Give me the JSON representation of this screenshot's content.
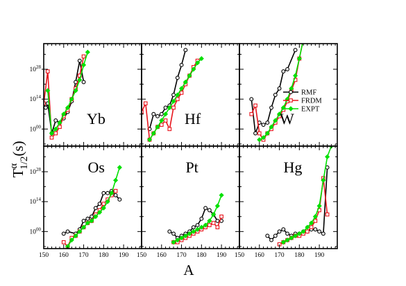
{
  "chart_data": {
    "type": "line",
    "xlabel": "A",
    "ylabel": {
      "main": "T",
      "sup": "α",
      "sub": "1/2",
      "suffix": "(s)"
    },
    "xlim": [
      150,
      199
    ],
    "ylim": [
      -8,
      40
    ],
    "xticks": [
      150,
      160,
      170,
      180,
      190
    ],
    "yticks": [
      {
        "value": 0,
        "base": "10",
        "exp": "00"
      },
      {
        "value": 14,
        "base": "10",
        "exp": "14"
      },
      {
        "value": 28,
        "base": "10",
        "exp": "28"
      }
    ],
    "legend": {
      "placement": "inside W panel, right",
      "entries": [
        {
          "key": "RMF",
          "label": "RMF"
        },
        {
          "key": "FRDM",
          "label": "FRDM"
        },
        {
          "key": "EXPT",
          "label": "EXPT"
        }
      ]
    },
    "series_styles": {
      "RMF": {
        "color": "#000000",
        "marker": "circle"
      },
      "FRDM": {
        "color": "#e8141c",
        "marker": "square"
      },
      "EXPT": {
        "color": "#00e000",
        "marker": "diamond"
      }
    },
    "panels": [
      {
        "element": "Yb",
        "series": {
          "RMF": [
            [
              150,
              12
            ],
            [
              151,
              10
            ],
            [
              152,
              12
            ],
            [
              154,
              -2
            ],
            [
              156,
              4
            ],
            [
              158,
              3
            ],
            [
              160,
              5
            ],
            [
              162,
              8
            ],
            [
              164,
              13
            ],
            [
              166,
              22
            ],
            [
              168,
              32
            ],
            [
              170,
              22
            ]
          ],
          "FRDM": [
            [
              150,
              12
            ],
            [
              152,
              27
            ],
            [
              154,
              -4
            ],
            [
              156,
              -2
            ],
            [
              158,
              1
            ],
            [
              160,
              6
            ],
            [
              162,
              9
            ],
            [
              164,
              14
            ],
            [
              166,
              19
            ],
            [
              168,
              25
            ],
            [
              170,
              34
            ]
          ],
          "EXPT": [
            [
              152,
              18
            ],
            [
              154,
              -2
            ],
            [
              156,
              0
            ],
            [
              158,
              3
            ],
            [
              160,
              7
            ],
            [
              162,
              10
            ],
            [
              164,
              14
            ],
            [
              166,
              18
            ],
            [
              168,
              23
            ],
            [
              170,
              30
            ],
            [
              172,
              36
            ]
          ]
        }
      },
      {
        "element": "Hf",
        "series": {
          "RMF": [
            [
              154,
              0
            ],
            [
              156,
              7
            ],
            [
              158,
              6
            ],
            [
              160,
              7
            ],
            [
              162,
              10
            ],
            [
              164,
              11
            ],
            [
              166,
              16
            ],
            [
              168,
              24
            ],
            [
              170,
              30
            ],
            [
              172,
              37
            ]
          ],
          "FRDM": [
            [
              150,
              8
            ],
            [
              152,
              12
            ],
            [
              154,
              -5
            ],
            [
              156,
              -2
            ],
            [
              158,
              1
            ],
            [
              160,
              2
            ],
            [
              162,
              4
            ],
            [
              164,
              0
            ],
            [
              166,
              10
            ],
            [
              168,
              14
            ],
            [
              170,
              17
            ],
            [
              172,
              21
            ],
            [
              174,
              25
            ],
            [
              176,
              29
            ],
            [
              178,
              32
            ]
          ],
          "EXPT": [
            [
              154,
              -5
            ],
            [
              156,
              -2
            ],
            [
              158,
              1
            ],
            [
              160,
              4
            ],
            [
              162,
              7
            ],
            [
              164,
              10
            ],
            [
              166,
              13
            ],
            [
              168,
              16
            ],
            [
              170,
              19
            ],
            [
              172,
              22
            ],
            [
              174,
              25
            ],
            [
              176,
              28
            ],
            [
              178,
              31
            ],
            [
              180,
              33
            ]
          ]
        }
      },
      {
        "element": "W",
        "series": {
          "RMF": [
            [
              156,
              14
            ],
            [
              158,
              -2
            ],
            [
              160,
              3
            ],
            [
              162,
              2
            ],
            [
              164,
              3
            ],
            [
              166,
              10
            ],
            [
              168,
              16
            ],
            [
              170,
              19
            ],
            [
              172,
              27
            ],
            [
              174,
              28
            ],
            [
              178,
              37
            ]
          ],
          "FRDM": [
            [
              156,
              7
            ],
            [
              158,
              11
            ],
            [
              160,
              -2
            ],
            [
              162,
              -5
            ],
            [
              164,
              -2
            ],
            [
              166,
              0
            ],
            [
              168,
              3
            ],
            [
              170,
              6
            ],
            [
              172,
              9
            ],
            [
              174,
              13
            ],
            [
              176,
              18
            ],
            [
              178,
              23
            ],
            [
              180,
              33
            ],
            [
              182,
              42
            ]
          ],
          "EXPT": [
            [
              160,
              -5
            ],
            [
              162,
              -4
            ],
            [
              164,
              -2
            ],
            [
              166,
              1
            ],
            [
              168,
              4
            ],
            [
              170,
              7
            ],
            [
              172,
              10
            ],
            [
              174,
              14
            ],
            [
              176,
              19
            ],
            [
              178,
              25
            ],
            [
              180,
              33
            ],
            [
              182,
              42
            ]
          ]
        }
      },
      {
        "element": "Os",
        "series": {
          "RMF": [
            [
              160,
              -1
            ],
            [
              162,
              0
            ],
            [
              166,
              -1
            ],
            [
              168,
              1
            ],
            [
              170,
              5
            ],
            [
              172,
              6
            ],
            [
              174,
              7
            ],
            [
              176,
              11
            ],
            [
              178,
              13
            ],
            [
              180,
              18
            ],
            [
              182,
              18
            ],
            [
              184,
              19
            ],
            [
              186,
              17
            ],
            [
              188,
              15
            ]
          ],
          "FRDM": [
            [
              160,
              -5
            ],
            [
              162,
              -7
            ],
            [
              164,
              -3
            ],
            [
              166,
              -2
            ],
            [
              168,
              0
            ],
            [
              170,
              2
            ],
            [
              172,
              4
            ],
            [
              174,
              5
            ],
            [
              176,
              8
            ],
            [
              178,
              10
            ],
            [
              180,
              13
            ],
            [
              182,
              15
            ],
            [
              184,
              17
            ],
            [
              186,
              19
            ]
          ],
          "EXPT": [
            [
              162,
              -7
            ],
            [
              164,
              -4
            ],
            [
              166,
              -2
            ],
            [
              168,
              0
            ],
            [
              170,
              2
            ],
            [
              172,
              4
            ],
            [
              174,
              5
            ],
            [
              176,
              7
            ],
            [
              178,
              9
            ],
            [
              180,
              11
            ],
            [
              182,
              14
            ],
            [
              184,
              18
            ],
            [
              186,
              24
            ],
            [
              188,
              30
            ]
          ]
        }
      },
      {
        "element": "Pt",
        "series": {
          "RMF": [
            [
              164,
              0
            ],
            [
              166,
              -1
            ],
            [
              168,
              -3
            ],
            [
              170,
              -2
            ],
            [
              172,
              -1
            ],
            [
              174,
              0
            ],
            [
              176,
              2
            ],
            [
              178,
              3
            ],
            [
              180,
              6
            ],
            [
              182,
              11
            ],
            [
              184,
              10
            ],
            [
              186,
              8
            ],
            [
              188,
              5
            ],
            [
              190,
              5
            ]
          ],
          "FRDM": [
            [
              166,
              -5
            ],
            [
              168,
              -5
            ],
            [
              170,
              -4
            ],
            [
              172,
              -3
            ],
            [
              174,
              -2
            ],
            [
              176,
              -1
            ],
            [
              178,
              0
            ],
            [
              180,
              1
            ],
            [
              182,
              2
            ],
            [
              184,
              3
            ],
            [
              186,
              4
            ],
            [
              188,
              2
            ],
            [
              190,
              7
            ]
          ],
          "EXPT": [
            [
              166,
              -5
            ],
            [
              168,
              -4
            ],
            [
              170,
              -3
            ],
            [
              172,
              -2
            ],
            [
              174,
              -1
            ],
            [
              176,
              0
            ],
            [
              178,
              1
            ],
            [
              180,
              2
            ],
            [
              182,
              3
            ],
            [
              184,
              5
            ],
            [
              186,
              8
            ],
            [
              188,
              12
            ],
            [
              190,
              17
            ]
          ]
        }
      },
      {
        "element": "Hg",
        "series": {
          "RMF": [
            [
              164,
              -2
            ],
            [
              166,
              -4
            ],
            [
              168,
              -2
            ],
            [
              170,
              0
            ],
            [
              172,
              1
            ],
            [
              174,
              -1
            ],
            [
              176,
              -2
            ],
            [
              178,
              -1
            ],
            [
              180,
              -1
            ],
            [
              182,
              0
            ],
            [
              184,
              0
            ],
            [
              186,
              1
            ],
            [
              188,
              1
            ],
            [
              190,
              0
            ],
            [
              192,
              -1
            ],
            [
              194,
              30
            ]
          ],
          "FRDM": [
            [
              170,
              -6
            ],
            [
              172,
              -5
            ],
            [
              174,
              -4
            ],
            [
              176,
              -3
            ],
            [
              178,
              -2
            ],
            [
              180,
              -2
            ],
            [
              182,
              -1
            ],
            [
              184,
              0
            ],
            [
              186,
              2
            ],
            [
              188,
              5
            ],
            [
              190,
              10
            ],
            [
              192,
              25
            ],
            [
              194,
              8
            ]
          ],
          "EXPT": [
            [
              172,
              -5
            ],
            [
              174,
              -4
            ],
            [
              176,
              -3
            ],
            [
              178,
              -2
            ],
            [
              180,
              -1
            ],
            [
              182,
              0
            ],
            [
              184,
              2
            ],
            [
              186,
              4
            ],
            [
              188,
              7
            ],
            [
              190,
              12
            ],
            [
              192,
              24
            ],
            [
              194,
              35
            ],
            [
              196,
              40
            ]
          ]
        }
      }
    ]
  }
}
